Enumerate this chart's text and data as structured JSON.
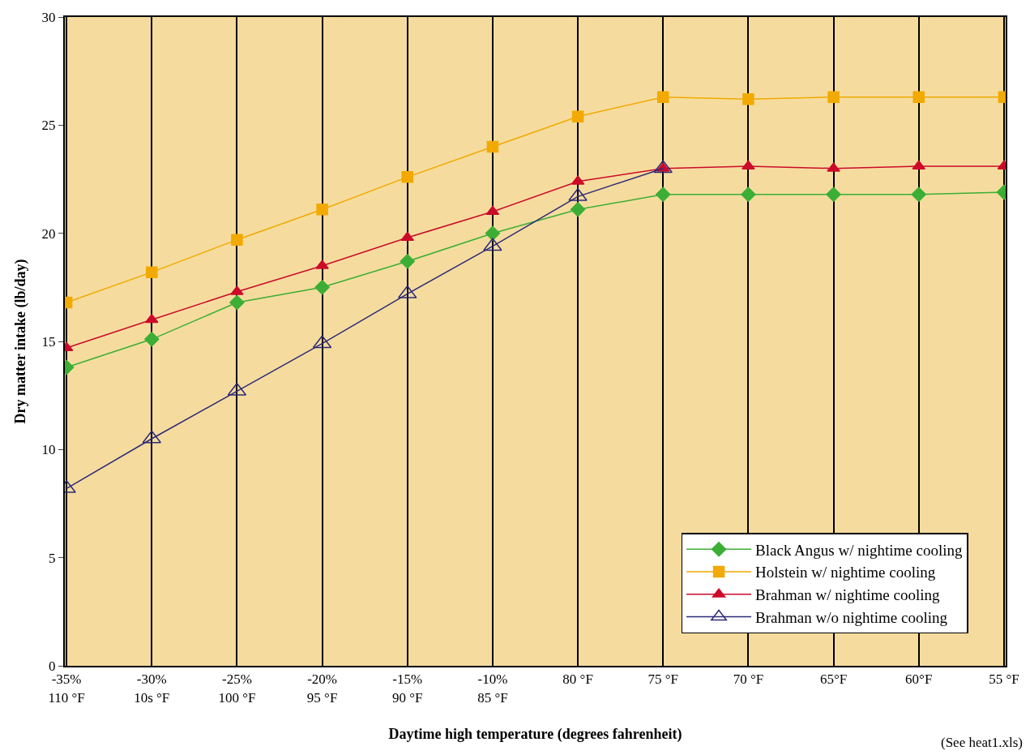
{
  "chart_data": {
    "type": "line",
    "xlabel": "Daytime high temperature (degrees fahrenheit)",
    "ylabel": "Dry matter intake (lb/day)",
    "annotations": [
      "(See heat1.xls)"
    ],
    "categories": [
      "-35%\n110 °F",
      "-30%\n10s °F",
      "-25%\n100 °F",
      "-20%\n95 °F",
      "-15%\n90 °F",
      "-10%\n85 °F",
      "80 °F",
      "75 °F",
      "70 °F",
      "65°F",
      "60°F",
      "55 °F"
    ],
    "ylim": [
      0,
      30
    ],
    "yticks": [
      0,
      5,
      10,
      15,
      20,
      25,
      30
    ],
    "grid": "x",
    "legend": "bottom right",
    "series": [
      {
        "name": "Black Angus w/ nightime cooling",
        "color": "#3cae35",
        "marker": "diamond",
        "values": [
          13.8,
          15.1,
          16.8,
          17.5,
          18.7,
          20.0,
          21.1,
          21.8,
          21.8,
          21.8,
          21.8,
          21.9
        ]
      },
      {
        "name": "Holstein w/ nightime cooling",
        "color": "#f2a900",
        "marker": "square",
        "values": [
          16.8,
          18.2,
          19.7,
          21.1,
          22.6,
          24.0,
          25.4,
          26.3,
          26.2,
          26.3,
          26.3,
          26.3
        ]
      },
      {
        "name": "Brahman w/ nightime cooling",
        "color": "#cc0a2a",
        "marker": "triangle",
        "values": [
          14.7,
          16.0,
          17.3,
          18.5,
          19.8,
          21.0,
          22.4,
          23.0,
          23.1,
          23.0,
          23.1,
          23.1
        ]
      },
      {
        "name": "Brahman w/o nightime cooling",
        "color": "#2d2a78",
        "marker": "triangle-open",
        "values": [
          8.2,
          10.5,
          12.7,
          14.9,
          17.2,
          19.4,
          21.7,
          23.0,
          null,
          null,
          null,
          null
        ]
      }
    ]
  }
}
